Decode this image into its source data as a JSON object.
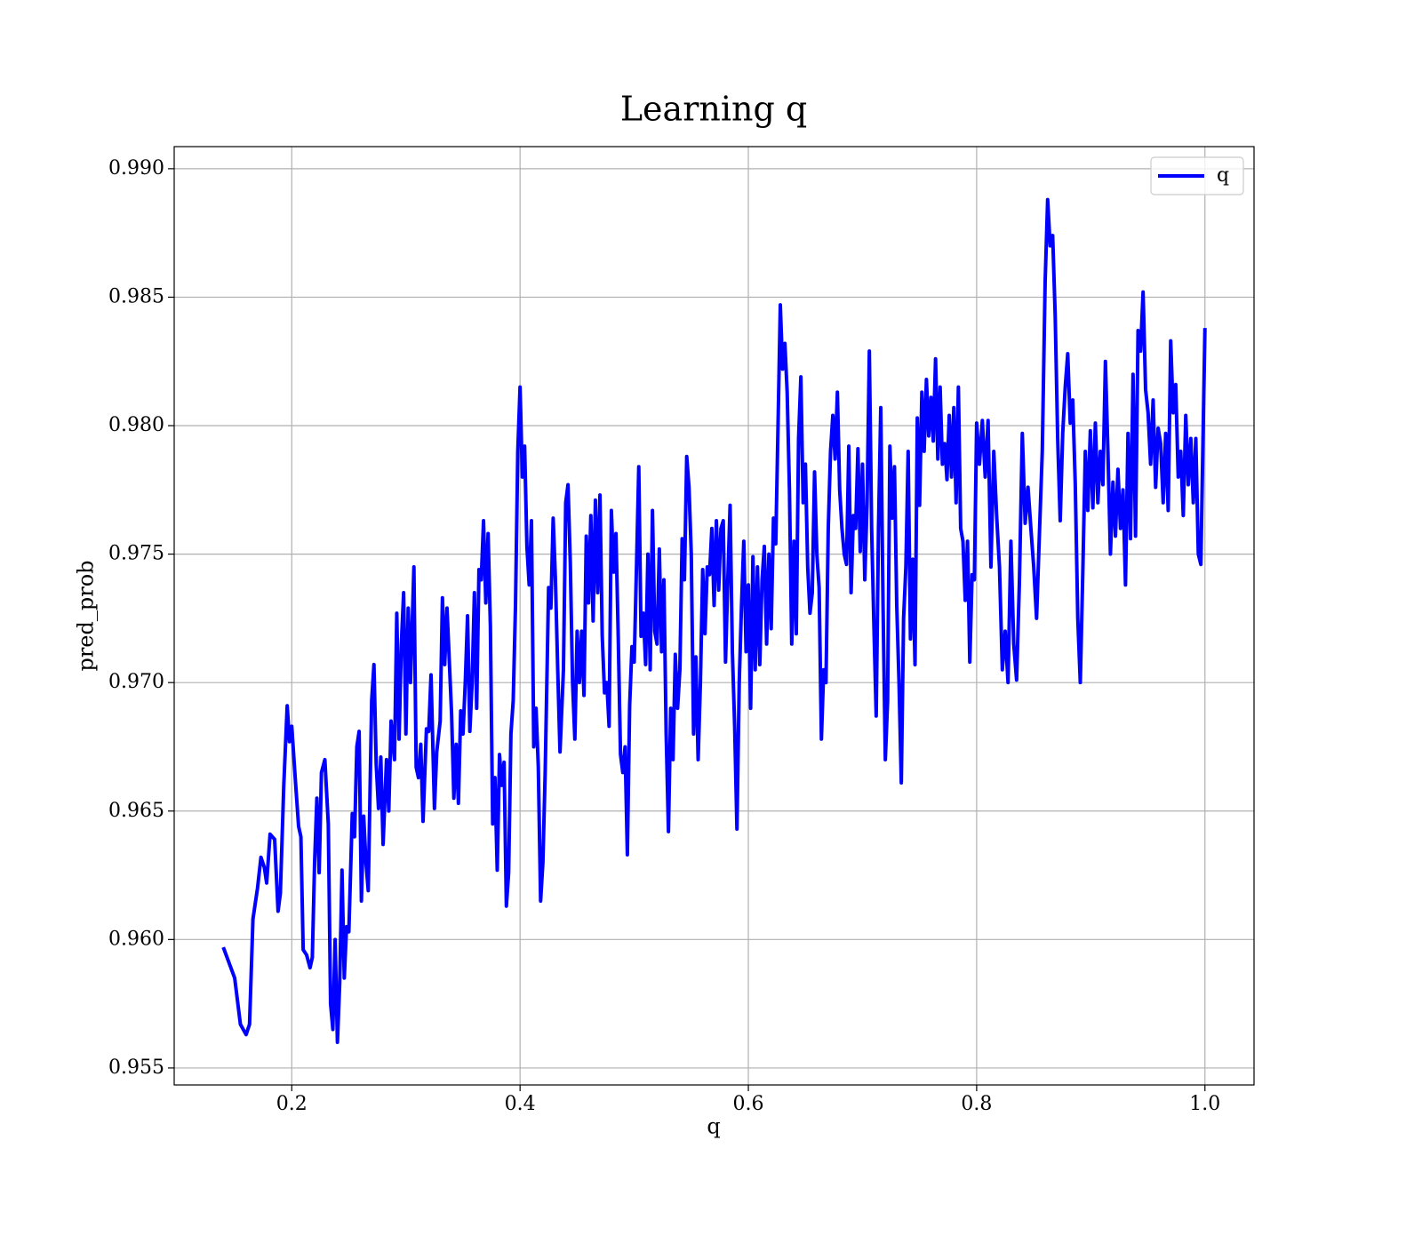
{
  "chart_data": {
    "type": "line",
    "title": "Learning q",
    "xlabel": "q",
    "ylabel": "pred_prob",
    "xlim": [
      0.097,
      1.043
    ],
    "ylim": [
      0.95434,
      0.99086
    ],
    "xticks": [
      0.2,
      0.4,
      0.6,
      0.8,
      {
        "value": 1.0,
        "label": "1.0"
      }
    ],
    "yticks": [
      0.955,
      {
        "value": 0.96,
        "label": "0.960"
      },
      0.965,
      {
        "value": 0.97,
        "label": "0.970"
      },
      0.975,
      {
        "value": 0.98,
        "label": "0.980"
      },
      0.985,
      {
        "value": 0.99,
        "label": "0.990"
      }
    ],
    "grid": true,
    "legend": "upper right",
    "series": [
      {
        "name": "q",
        "color": "#0000ff",
        "x": [
          0.14,
          0.15,
          0.155,
          0.16,
          0.163,
          0.166,
          0.17,
          0.173,
          0.176,
          0.178,
          0.181,
          0.185,
          0.188,
          0.19,
          0.193,
          0.196,
          0.198,
          0.2,
          0.203,
          0.206,
          0.208,
          0.21,
          0.213,
          0.216,
          0.218,
          0.22,
          0.222,
          0.224,
          0.226,
          0.229,
          0.232,
          0.234,
          0.236,
          0.238,
          0.24,
          0.242,
          0.244,
          0.246,
          0.248,
          0.25,
          0.253,
          0.255,
          0.257,
          0.259,
          0.261,
          0.263,
          0.265,
          0.267,
          0.27,
          0.272,
          0.274,
          0.276,
          0.278,
          0.28,
          0.283,
          0.285,
          0.287,
          0.29,
          0.292,
          0.294,
          0.296,
          0.298,
          0.3,
          0.302,
          0.304,
          0.307,
          0.309,
          0.311,
          0.313,
          0.315,
          0.318,
          0.32,
          0.322,
          0.325,
          0.327,
          0.33,
          0.332,
          0.334,
          0.336,
          0.34,
          0.342,
          0.344,
          0.346,
          0.348,
          0.35,
          0.352,
          0.354,
          0.356,
          0.358,
          0.36,
          0.362,
          0.364,
          0.366,
          0.368,
          0.37,
          0.372,
          0.374,
          0.376,
          0.378,
          0.38,
          0.382,
          0.384,
          0.386,
          0.388,
          0.39,
          0.392,
          0.394,
          0.396,
          0.398,
          0.4,
          0.402,
          0.404,
          0.406,
          0.408,
          0.41,
          0.412,
          0.414,
          0.416,
          0.418,
          0.42,
          0.422,
          0.425,
          0.427,
          0.429,
          0.431,
          0.433,
          0.435,
          0.438,
          0.44,
          0.442,
          0.444,
          0.446,
          0.448,
          0.45,
          0.452,
          0.454,
          0.456,
          0.458,
          0.46,
          0.462,
          0.464,
          0.466,
          0.468,
          0.47,
          0.472,
          0.474,
          0.476,
          0.478,
          0.48,
          0.482,
          0.484,
          0.486,
          0.488,
          0.49,
          0.492,
          0.494,
          0.496,
          0.498,
          0.5,
          0.502,
          0.504,
          0.506,
          0.508,
          0.51,
          0.512,
          0.514,
          0.516,
          0.518,
          0.52,
          0.522,
          0.524,
          0.526,
          0.528,
          0.53,
          0.532,
          0.534,
          0.536,
          0.538,
          0.54,
          0.542,
          0.544,
          0.546,
          0.548,
          0.55,
          0.552,
          0.554,
          0.556,
          0.558,
          0.56,
          0.562,
          0.564,
          0.566,
          0.568,
          0.57,
          0.572,
          0.574,
          0.576,
          0.578,
          0.58,
          0.582,
          0.584,
          0.586,
          0.588,
          0.59,
          0.592,
          0.594,
          0.596,
          0.598,
          0.6,
          0.602,
          0.604,
          0.606,
          0.608,
          0.61,
          0.612,
          0.614,
          0.616,
          0.618,
          0.62,
          0.622,
          0.624,
          0.626,
          0.628,
          0.63,
          0.632,
          0.634,
          0.636,
          0.638,
          0.64,
          0.642,
          0.644,
          0.646,
          0.648,
          0.65,
          0.652,
          0.654,
          0.656,
          0.658,
          0.66,
          0.662,
          0.664,
          0.666,
          0.668,
          0.67,
          0.672,
          0.674,
          0.676,
          0.678,
          0.68,
          0.682,
          0.684,
          0.686,
          0.688,
          0.69,
          0.692,
          0.694,
          0.696,
          0.698,
          0.7,
          0.702,
          0.704,
          0.706,
          0.708,
          0.71,
          0.712,
          0.714,
          0.716,
          0.718,
          0.72,
          0.722,
          0.724,
          0.726,
          0.728,
          0.73,
          0.732,
          0.734,
          0.736,
          0.738,
          0.74,
          0.742,
          0.744,
          0.746,
          0.748,
          0.75,
          0.752,
          0.754,
          0.756,
          0.758,
          0.76,
          0.762,
          0.764,
          0.766,
          0.768,
          0.77,
          0.772,
          0.774,
          0.776,
          0.778,
          0.78,
          0.782,
          0.784,
          0.786,
          0.788,
          0.79,
          0.792,
          0.794,
          0.796,
          0.798,
          0.8,
          0.8025,
          0.805,
          0.8075,
          0.81,
          0.8125,
          0.815,
          0.8175,
          0.82,
          0.8225,
          0.825,
          0.8275,
          0.83,
          0.8325,
          0.835,
          0.8375,
          0.84,
          0.8425,
          0.845,
          0.8475,
          0.85,
          0.8525,
          0.855,
          0.8575,
          0.86,
          0.8622,
          0.8644,
          0.8666,
          0.8688,
          0.871,
          0.8732,
          0.8754,
          0.8776,
          0.8798,
          0.882,
          0.8842,
          0.8864,
          0.8886,
          0.8908,
          0.893,
          0.8952,
          0.8974,
          0.8996,
          0.9018,
          0.904,
          0.9062,
          0.9084,
          0.9106,
          0.9128,
          0.915,
          0.9172,
          0.9194,
          0.9216,
          0.9238,
          0.926,
          0.9282,
          0.9304,
          0.9326,
          0.9348,
          0.937,
          0.9392,
          0.9414,
          0.9436,
          0.9458,
          0.948,
          0.9502,
          0.9524,
          0.9546,
          0.9568,
          0.959,
          0.9612,
          0.9634,
          0.9656,
          0.9678,
          0.97,
          0.9722,
          0.9744,
          0.9766,
          0.9788,
          0.981,
          0.9832,
          0.9854,
          0.9876,
          0.9898,
          0.992,
          0.9942,
          0.9964,
          1.0
        ],
        "values": [
          0.9597,
          0.9585,
          0.9567,
          0.9563,
          0.9567,
          0.9608,
          0.962,
          0.9632,
          0.9628,
          0.9622,
          0.9641,
          0.9639,
          0.9611,
          0.9618,
          0.966,
          0.9691,
          0.9677,
          0.9683,
          0.9663,
          0.9644,
          0.964,
          0.9596,
          0.9594,
          0.9589,
          0.9593,
          0.963,
          0.9655,
          0.9626,
          0.9665,
          0.967,
          0.9645,
          0.9575,
          0.9565,
          0.96,
          0.956,
          0.9583,
          0.9627,
          0.9585,
          0.9605,
          0.9603,
          0.9649,
          0.964,
          0.9675,
          0.9681,
          0.9615,
          0.9648,
          0.963,
          0.9619,
          0.9693,
          0.9707,
          0.9668,
          0.9651,
          0.9671,
          0.9637,
          0.967,
          0.965,
          0.9685,
          0.967,
          0.9727,
          0.9678,
          0.9715,
          0.9735,
          0.968,
          0.9729,
          0.97,
          0.9745,
          0.9667,
          0.9663,
          0.9676,
          0.9646,
          0.9682,
          0.9681,
          0.9703,
          0.9651,
          0.9673,
          0.9685,
          0.9733,
          0.9707,
          0.9729,
          0.9688,
          0.9655,
          0.9676,
          0.9653,
          0.9689,
          0.968,
          0.97,
          0.9726,
          0.9681,
          0.97,
          0.9735,
          0.969,
          0.9744,
          0.974,
          0.9763,
          0.9731,
          0.9758,
          0.9722,
          0.9645,
          0.9663,
          0.9627,
          0.9672,
          0.966,
          0.9669,
          0.9613,
          0.9626,
          0.968,
          0.9693,
          0.973,
          0.979,
          0.9815,
          0.978,
          0.9792,
          0.9753,
          0.9738,
          0.9763,
          0.9675,
          0.969,
          0.9667,
          0.9615,
          0.963,
          0.9665,
          0.9737,
          0.9729,
          0.9764,
          0.974,
          0.9705,
          0.9673,
          0.9705,
          0.977,
          0.9777,
          0.9747,
          0.97,
          0.9678,
          0.972,
          0.97,
          0.972,
          0.9695,
          0.9757,
          0.9731,
          0.9765,
          0.9724,
          0.9771,
          0.9735,
          0.9773,
          0.9718,
          0.9696,
          0.97,
          0.9683,
          0.9767,
          0.9743,
          0.9758,
          0.9718,
          0.9672,
          0.9665,
          0.9675,
          0.9633,
          0.9691,
          0.9714,
          0.9708,
          0.9745,
          0.9784,
          0.9718,
          0.9727,
          0.9707,
          0.975,
          0.9705,
          0.9767,
          0.972,
          0.9715,
          0.9752,
          0.9712,
          0.974,
          0.968,
          0.9642,
          0.969,
          0.967,
          0.9711,
          0.969,
          0.9705,
          0.9756,
          0.974,
          0.9788,
          0.9776,
          0.975,
          0.968,
          0.971,
          0.967,
          0.97,
          0.9744,
          0.9719,
          0.9745,
          0.9742,
          0.976,
          0.973,
          0.9763,
          0.9736,
          0.976,
          0.9763,
          0.9708,
          0.974,
          0.9769,
          0.9712,
          0.9683,
          0.9643,
          0.97,
          0.973,
          0.9755,
          0.9712,
          0.9738,
          0.969,
          0.9749,
          0.9705,
          0.9745,
          0.9707,
          0.974,
          0.9753,
          0.9715,
          0.975,
          0.9721,
          0.9764,
          0.9754,
          0.98,
          0.9847,
          0.9822,
          0.9832,
          0.9813,
          0.9775,
          0.9715,
          0.9755,
          0.9719,
          0.9795,
          0.9819,
          0.977,
          0.9785,
          0.9745,
          0.9727,
          0.9735,
          0.9782,
          0.975,
          0.9737,
          0.9678,
          0.9705,
          0.97,
          0.976,
          0.979,
          0.9804,
          0.9787,
          0.9813,
          0.9775,
          0.976,
          0.975,
          0.9746,
          0.9792,
          0.9735,
          0.9765,
          0.976,
          0.9791,
          0.9751,
          0.9785,
          0.974,
          0.977,
          0.9829,
          0.976,
          0.9722,
          0.9687,
          0.976,
          0.9807,
          0.973,
          0.967,
          0.9693,
          0.9792,
          0.9764,
          0.9784,
          0.973,
          0.97,
          0.9661,
          0.9725,
          0.9745,
          0.979,
          0.9717,
          0.9748,
          0.9707,
          0.9803,
          0.9769,
          0.9813,
          0.979,
          0.9818,
          0.9796,
          0.9811,
          0.9794,
          0.9826,
          0.9787,
          0.9815,
          0.9785,
          0.9793,
          0.9779,
          0.9804,
          0.978,
          0.9807,
          0.977,
          0.9815,
          0.976,
          0.9755,
          0.9732,
          0.9755,
          0.9708,
          0.9742,
          0.974,
          0.9801,
          0.9785,
          0.9802,
          0.978,
          0.9802,
          0.9745,
          0.979,
          0.9765,
          0.9745,
          0.9705,
          0.972,
          0.97,
          0.9755,
          0.9715,
          0.9701,
          0.974,
          0.9797,
          0.9762,
          0.9776,
          0.976,
          0.9745,
          0.9725,
          0.9758,
          0.979,
          0.9856,
          0.9888,
          0.987,
          0.9874,
          0.9843,
          0.9795,
          0.9763,
          0.9797,
          0.9815,
          0.9828,
          0.9801,
          0.981,
          0.9777,
          0.9725,
          0.97,
          0.9743,
          0.979,
          0.9767,
          0.9798,
          0.9768,
          0.9801,
          0.977,
          0.979,
          0.9777,
          0.9825,
          0.979,
          0.975,
          0.9778,
          0.9757,
          0.9783,
          0.976,
          0.9775,
          0.9738,
          0.9797,
          0.9756,
          0.982,
          0.9757,
          0.9837,
          0.9829,
          0.9852,
          0.9814,
          0.9805,
          0.9785,
          0.981,
          0.9776,
          0.9799,
          0.9793,
          0.977,
          0.9797,
          0.9767,
          0.9833,
          0.9805,
          0.9816,
          0.978,
          0.979,
          0.9765,
          0.9804,
          0.9777,
          0.9795,
          0.977,
          0.9795,
          0.975,
          0.9746,
          0.9838
        ]
      }
    ]
  }
}
